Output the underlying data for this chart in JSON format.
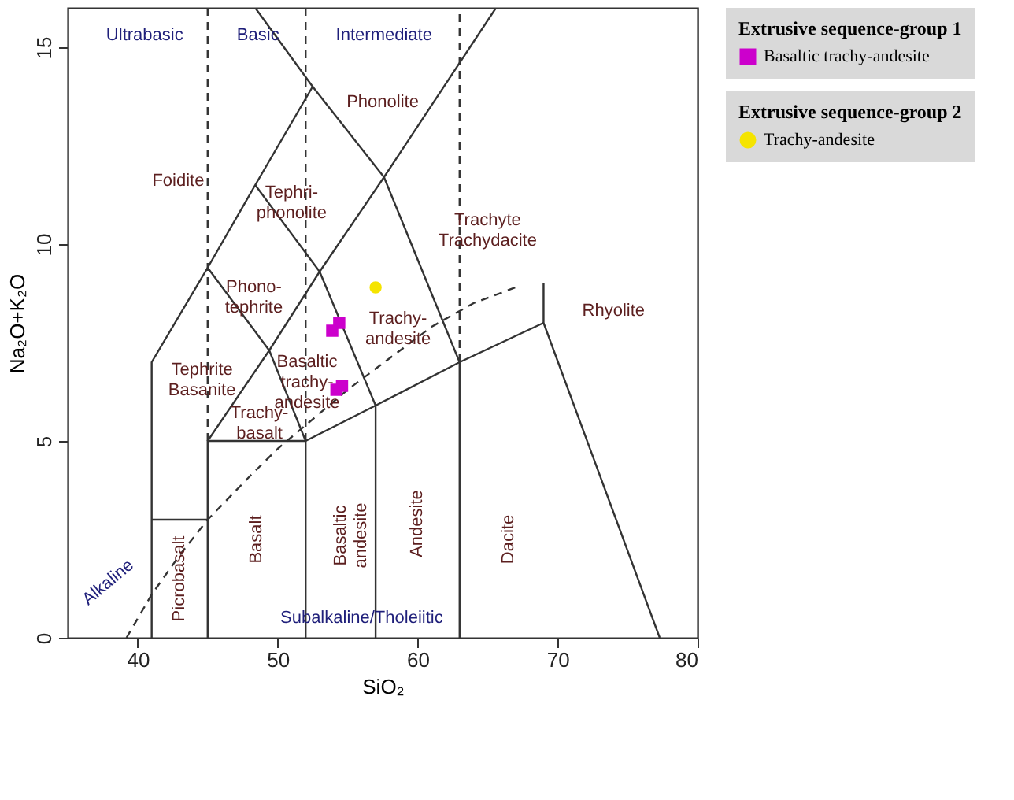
{
  "chart_data": {
    "type": "scatter",
    "xlabel": "SiO₂",
    "ylabel": "Na₂O+K₂O",
    "xlim": [
      35,
      80
    ],
    "ylim": [
      0,
      16
    ],
    "xticks": [
      40,
      50,
      60,
      70,
      80
    ],
    "yticks": [
      0,
      5,
      10,
      15
    ],
    "grid": false,
    "legend": "top right",
    "series": [
      {
        "type": "line",
        "color": "#333333",
        "line_style": "solid",
        "x": [
          41,
          45
        ],
        "values": [
          3,
          3
        ]
      },
      {
        "type": "line",
        "color": "#333333",
        "line_style": "solid",
        "x": [
          41,
          41,
          45,
          48.4,
          52.5,
          48.4
        ],
        "values": [
          0,
          7,
          9.4,
          11.5,
          14,
          16
        ]
      },
      {
        "type": "line",
        "color": "#333333",
        "line_style": "solid",
        "x": [
          45,
          45,
          52,
          57,
          63,
          69
        ],
        "values": [
          0,
          5,
          5,
          5.9,
          7,
          8
        ]
      },
      {
        "type": "line",
        "color": "#333333",
        "line_style": "solid",
        "x": [
          69,
          69,
          77.3
        ],
        "values": [
          9,
          8,
          0
        ]
      },
      {
        "type": "line",
        "color": "#333333",
        "line_style": "solid",
        "x": [
          45,
          49.4,
          53,
          57.6,
          65.6
        ],
        "values": [
          9.4,
          7.3,
          9.3,
          11.7,
          16
        ]
      },
      {
        "type": "line",
        "color": "#333333",
        "line_style": "solid",
        "x": [
          45,
          49.4,
          52,
          52
        ],
        "values": [
          5,
          7.3,
          5,
          0
        ]
      },
      {
        "type": "line",
        "color": "#333333",
        "line_style": "solid",
        "x": [
          48.4,
          53,
          57,
          57
        ],
        "values": [
          11.5,
          9.3,
          5.9,
          0
        ]
      },
      {
        "type": "line",
        "color": "#333333",
        "line_style": "solid",
        "x": [
          52.5,
          57.6,
          63,
          63
        ],
        "values": [
          14,
          11.7,
          7,
          0
        ]
      },
      {
        "type": "line",
        "color": "#333333",
        "line_style": "dashed",
        "x": [
          45,
          45
        ],
        "values": [
          5,
          16
        ]
      },
      {
        "type": "line",
        "color": "#333333",
        "line_style": "dashed",
        "x": [
          52,
          52
        ],
        "values": [
          5,
          16
        ]
      },
      {
        "type": "line",
        "color": "#333333",
        "line_style": "dashed",
        "x": [
          63,
          63
        ],
        "values": [
          7,
          16
        ]
      },
      {
        "type": "line",
        "color": "#333333",
        "line_style": "dashed",
        "x": [
          39.2,
          41,
          43,
          45,
          48,
          50,
          52,
          55,
          58,
          61,
          64,
          67
        ],
        "values": [
          0,
          1.1,
          2.1,
          3.0,
          4.1,
          4.8,
          5.4,
          6.3,
          7.1,
          7.9,
          8.5,
          8.9
        ]
      },
      {
        "name": "Basaltic trachy-andesite",
        "color": "#cc00cc",
        "marker": "square",
        "x": [
          54.4,
          53.9,
          54.6,
          54.2
        ],
        "values": [
          8.0,
          7.8,
          6.4,
          6.3
        ]
      },
      {
        "name": "Trachy-andesite",
        "color": "#f5e400",
        "marker": "circle",
        "x": [
          57.0
        ],
        "values": [
          8.9
        ]
      }
    ],
    "annotations": [
      "Extrusive sequence-group 1",
      "Extrusive sequence-group 2",
      "Ultrabasic",
      "Basic",
      "Intermediate",
      "Foidite",
      "Phonolite",
      "Tephri-\nphonolite",
      "Phono-\ntephrite",
      "Trachyte\nTrachydacite",
      "Trachy-\nandesite",
      "Basaltic\ntrachy-\nandesite",
      "Tephrite\nBasanite",
      "Trachy-\nbasalt",
      "Rhyolite",
      "Picrobasalt",
      "Basalt",
      "Basaltic\nandesite",
      "Andesite",
      "Dacite",
      "Alkaline",
      "Subalkaline/Tholeiitic"
    ]
  }
}
